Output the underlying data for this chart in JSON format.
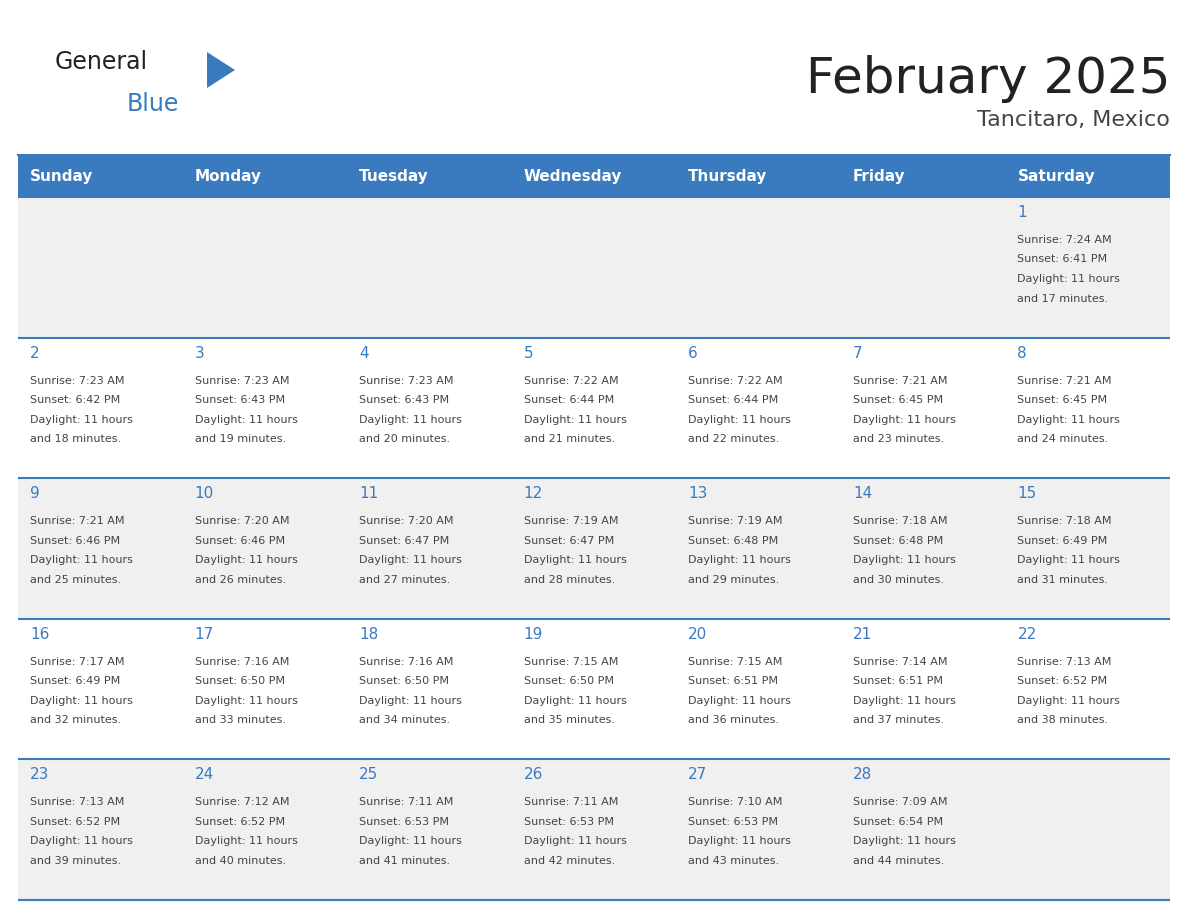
{
  "title": "February 2025",
  "subtitle": "Tancitaro, Mexico",
  "days_of_week": [
    "Sunday",
    "Monday",
    "Tuesday",
    "Wednesday",
    "Thursday",
    "Friday",
    "Saturday"
  ],
  "header_bg": "#3a7abf",
  "header_text": "#ffffff",
  "row_bg_odd": "#f0f0f0",
  "row_bg_even": "#ffffff",
  "divider_color": "#3a7abf",
  "day_number_color": "#3a7abf",
  "text_color": "#444444",
  "title_color": "#222222",
  "subtitle_color": "#444444",
  "calendar_data": [
    [
      null,
      null,
      null,
      null,
      null,
      null,
      {
        "day": 1,
        "sunrise": "7:24 AM",
        "sunset": "6:41 PM",
        "daylight": "11 hours and 17 minutes."
      }
    ],
    [
      {
        "day": 2,
        "sunrise": "7:23 AM",
        "sunset": "6:42 PM",
        "daylight": "11 hours and 18 minutes."
      },
      {
        "day": 3,
        "sunrise": "7:23 AM",
        "sunset": "6:43 PM",
        "daylight": "11 hours and 19 minutes."
      },
      {
        "day": 4,
        "sunrise": "7:23 AM",
        "sunset": "6:43 PM",
        "daylight": "11 hours and 20 minutes."
      },
      {
        "day": 5,
        "sunrise": "7:22 AM",
        "sunset": "6:44 PM",
        "daylight": "11 hours and 21 minutes."
      },
      {
        "day": 6,
        "sunrise": "7:22 AM",
        "sunset": "6:44 PM",
        "daylight": "11 hours and 22 minutes."
      },
      {
        "day": 7,
        "sunrise": "7:21 AM",
        "sunset": "6:45 PM",
        "daylight": "11 hours and 23 minutes."
      },
      {
        "day": 8,
        "sunrise": "7:21 AM",
        "sunset": "6:45 PM",
        "daylight": "11 hours and 24 minutes."
      }
    ],
    [
      {
        "day": 9,
        "sunrise": "7:21 AM",
        "sunset": "6:46 PM",
        "daylight": "11 hours and 25 minutes."
      },
      {
        "day": 10,
        "sunrise": "7:20 AM",
        "sunset": "6:46 PM",
        "daylight": "11 hours and 26 minutes."
      },
      {
        "day": 11,
        "sunrise": "7:20 AM",
        "sunset": "6:47 PM",
        "daylight": "11 hours and 27 minutes."
      },
      {
        "day": 12,
        "sunrise": "7:19 AM",
        "sunset": "6:47 PM",
        "daylight": "11 hours and 28 minutes."
      },
      {
        "day": 13,
        "sunrise": "7:19 AM",
        "sunset": "6:48 PM",
        "daylight": "11 hours and 29 minutes."
      },
      {
        "day": 14,
        "sunrise": "7:18 AM",
        "sunset": "6:48 PM",
        "daylight": "11 hours and 30 minutes."
      },
      {
        "day": 15,
        "sunrise": "7:18 AM",
        "sunset": "6:49 PM",
        "daylight": "11 hours and 31 minutes."
      }
    ],
    [
      {
        "day": 16,
        "sunrise": "7:17 AM",
        "sunset": "6:49 PM",
        "daylight": "11 hours and 32 minutes."
      },
      {
        "day": 17,
        "sunrise": "7:16 AM",
        "sunset": "6:50 PM",
        "daylight": "11 hours and 33 minutes."
      },
      {
        "day": 18,
        "sunrise": "7:16 AM",
        "sunset": "6:50 PM",
        "daylight": "11 hours and 34 minutes."
      },
      {
        "day": 19,
        "sunrise": "7:15 AM",
        "sunset": "6:50 PM",
        "daylight": "11 hours and 35 minutes."
      },
      {
        "day": 20,
        "sunrise": "7:15 AM",
        "sunset": "6:51 PM",
        "daylight": "11 hours and 36 minutes."
      },
      {
        "day": 21,
        "sunrise": "7:14 AM",
        "sunset": "6:51 PM",
        "daylight": "11 hours and 37 minutes."
      },
      {
        "day": 22,
        "sunrise": "7:13 AM",
        "sunset": "6:52 PM",
        "daylight": "11 hours and 38 minutes."
      }
    ],
    [
      {
        "day": 23,
        "sunrise": "7:13 AM",
        "sunset": "6:52 PM",
        "daylight": "11 hours and 39 minutes."
      },
      {
        "day": 24,
        "sunrise": "7:12 AM",
        "sunset": "6:52 PM",
        "daylight": "11 hours and 40 minutes."
      },
      {
        "day": 25,
        "sunrise": "7:11 AM",
        "sunset": "6:53 PM",
        "daylight": "11 hours and 41 minutes."
      },
      {
        "day": 26,
        "sunrise": "7:11 AM",
        "sunset": "6:53 PM",
        "daylight": "11 hours and 42 minutes."
      },
      {
        "day": 27,
        "sunrise": "7:10 AM",
        "sunset": "6:53 PM",
        "daylight": "11 hours and 43 minutes."
      },
      {
        "day": 28,
        "sunrise": "7:09 AM",
        "sunset": "6:54 PM",
        "daylight": "11 hours and 44 minutes."
      },
      null
    ]
  ],
  "logo_text1": "General",
  "logo_text2": "Blue",
  "logo_color1": "#222222",
  "logo_color2": "#3a7abf",
  "logo_triangle_color": "#3a7abf"
}
